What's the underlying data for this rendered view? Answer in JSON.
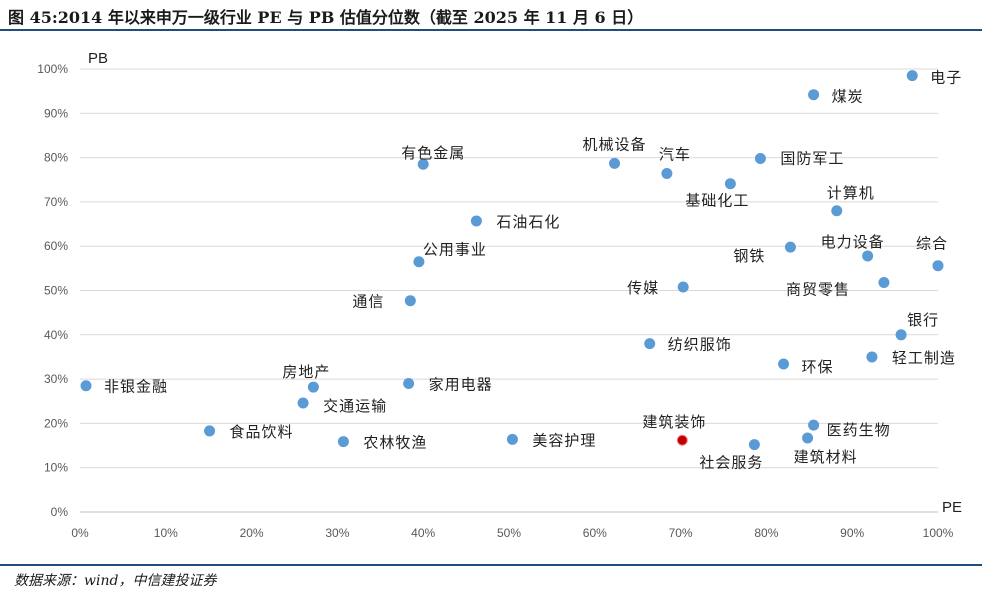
{
  "title": "图 45:2014 年以来申万一级行业 PE 与 PB 估值分位数（截至 2025 年 11 月 6 日）",
  "source": "数据来源：wind，中信建投证券",
  "colors": {
    "point": "#5b9bd5",
    "highlight": "#c00000",
    "rule": "#1f4e79",
    "grid": "#d9d9d9"
  },
  "chart_data": {
    "type": "scatter",
    "xlabel": "PE",
    "ylabel": "PB",
    "xlim": [
      0,
      1
    ],
    "ylim": [
      0,
      1
    ],
    "grid": "horizontal",
    "x_ticks": [
      "0%",
      "10%",
      "20%",
      "30%",
      "40%",
      "50%",
      "60%",
      "70%",
      "80%",
      "90%",
      "100%"
    ],
    "y_ticks": [
      "0%",
      "10%",
      "20%",
      "30%",
      "40%",
      "50%",
      "60%",
      "70%",
      "80%",
      "90%",
      "100%"
    ],
    "points": [
      {
        "label": "电子",
        "x": 0.97,
        "y": 0.985
      },
      {
        "label": "煤炭",
        "x": 0.855,
        "y": 0.942
      },
      {
        "label": "有色金属",
        "x": 0.4,
        "y": 0.785
      },
      {
        "label": "机械设备",
        "x": 0.623,
        "y": 0.787
      },
      {
        "label": "汽车",
        "x": 0.684,
        "y": 0.764
      },
      {
        "label": "国防军工",
        "x": 0.793,
        "y": 0.798
      },
      {
        "label": "基础化工",
        "x": 0.758,
        "y": 0.741
      },
      {
        "label": "计算机",
        "x": 0.882,
        "y": 0.68
      },
      {
        "label": "石油石化",
        "x": 0.462,
        "y": 0.657
      },
      {
        "label": "公用事业",
        "x": 0.395,
        "y": 0.565
      },
      {
        "label": "钢铁",
        "x": 0.828,
        "y": 0.598
      },
      {
        "label": "电力设备",
        "x": 0.918,
        "y": 0.578
      },
      {
        "label": "综合",
        "x": 1.0,
        "y": 0.556
      },
      {
        "label": "通信",
        "x": 0.385,
        "y": 0.477
      },
      {
        "label": "传媒",
        "x": 0.703,
        "y": 0.508
      },
      {
        "label": "商贸零售",
        "x": 0.937,
        "y": 0.518
      },
      {
        "label": "银行",
        "x": 0.957,
        "y": 0.4
      },
      {
        "label": "纺织服饰",
        "x": 0.664,
        "y": 0.38
      },
      {
        "label": "环保",
        "x": 0.82,
        "y": 0.334
      },
      {
        "label": "轻工制造",
        "x": 0.923,
        "y": 0.35
      },
      {
        "label": "非银金融",
        "x": 0.007,
        "y": 0.285
      },
      {
        "label": "房地产",
        "x": 0.272,
        "y": 0.282
      },
      {
        "label": "家用电器",
        "x": 0.383,
        "y": 0.29
      },
      {
        "label": "交通运输",
        "x": 0.26,
        "y": 0.246
      },
      {
        "label": "食品饮料",
        "x": 0.151,
        "y": 0.183
      },
      {
        "label": "农林牧渔",
        "x": 0.307,
        "y": 0.159
      },
      {
        "label": "美容护理",
        "x": 0.504,
        "y": 0.164
      },
      {
        "label": "建筑装饰",
        "x": 0.702,
        "y": 0.162,
        "highlight": true
      },
      {
        "label": "社会服务",
        "x": 0.786,
        "y": 0.152
      },
      {
        "label": "医药生物",
        "x": 0.855,
        "y": 0.196
      },
      {
        "label": "建筑材料",
        "x": 0.848,
        "y": 0.167
      }
    ]
  }
}
